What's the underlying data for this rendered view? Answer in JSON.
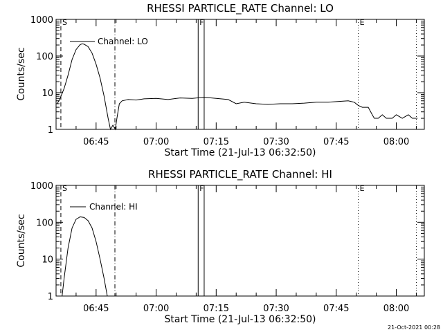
{
  "footer": {
    "timestamp": "21-Oct-2021 00:28"
  },
  "chart_data": [
    {
      "type": "line",
      "title": "RHESSI PARTICLE_RATE Channel: LO",
      "xlabel": "Start Time (21-Jul-13 06:32:50)",
      "ylabel": "Counts/sec",
      "yscale": "log",
      "xlim": [
        "06:35",
        "08:07"
      ],
      "ylim": [
        1,
        1000
      ],
      "x_ticks": [
        "06:45",
        "07:00",
        "07:15",
        "07:30",
        "07:45",
        "08:00"
      ],
      "y_ticks": [
        "1",
        "10",
        "100",
        "1000"
      ],
      "legend": {
        "placement": "top-left",
        "entries": [
          "Channel: LO"
        ]
      },
      "grid": false,
      "markers": [
        {
          "label": "S",
          "time": "06:36.2",
          "style": "dashed"
        },
        {
          "label": "",
          "time": "06:49.7",
          "style": "dashdot"
        },
        {
          "label": "F",
          "time": "07:10.5",
          "style": "solid"
        },
        {
          "label": "",
          "time": "07:12.0",
          "style": "solid"
        },
        {
          "label": "E",
          "time": "07:50.5",
          "style": "dotted"
        },
        {
          "label": "",
          "time": "08:05.0",
          "style": "dotted"
        }
      ],
      "series": [
        {
          "name": "Channel: LO",
          "points": [
            [
              "06:35.3",
              5
            ],
            [
              "06:36.0",
              7
            ],
            [
              "06:37.0",
              13
            ],
            [
              "06:38.0",
              30
            ],
            [
              "06:39.0",
              80
            ],
            [
              "06:40.0",
              150
            ],
            [
              "06:41.0",
              205
            ],
            [
              "06:41.5",
              215
            ],
            [
              "06:42.0",
              210
            ],
            [
              "06:43.0",
              180
            ],
            [
              "06:44.0",
              120
            ],
            [
              "06:45.0",
              60
            ],
            [
              "06:46.0",
              25
            ],
            [
              "06:47.0",
              8
            ],
            [
              "06:48.0",
              2
            ],
            [
              "06:48.6",
              1
            ],
            [
              "06:49.2",
              1.3
            ],
            [
              "06:49.8",
              1
            ],
            [
              "06:50.2",
              2
            ],
            [
              "06:50.8",
              5
            ],
            [
              "06:51.5",
              6
            ],
            [
              "06:53.0",
              6.5
            ],
            [
              "06:55.0",
              6.3
            ],
            [
              "06:57.0",
              6.8
            ],
            [
              "07:00.0",
              7
            ],
            [
              "07:03.0",
              6.5
            ],
            [
              "07:06.0",
              7.2
            ],
            [
              "07:09.0",
              7
            ],
            [
              "07:12.0",
              7.5
            ],
            [
              "07:15.0",
              7
            ],
            [
              "07:18.0",
              6.5
            ],
            [
              "07:20.0",
              5
            ],
            [
              "07:22.0",
              5.5
            ],
            [
              "07:25.0",
              5
            ],
            [
              "07:28.0",
              4.8
            ],
            [
              "07:31.0",
              5
            ],
            [
              "07:34.0",
              5
            ],
            [
              "07:37.0",
              5.2
            ],
            [
              "07:40.0",
              5.5
            ],
            [
              "07:43.0",
              5.5
            ],
            [
              "07:46.0",
              5.8
            ],
            [
              "07:48.0",
              6
            ],
            [
              "07:49.5",
              5.5
            ],
            [
              "07:50.5",
              4.5
            ],
            [
              "07:51.5",
              4
            ],
            [
              "07:53.0",
              4
            ],
            [
              "07:54.0",
              2.5
            ],
            [
              "07:54.5",
              2
            ],
            [
              "07:55.5",
              2
            ],
            [
              "07:56.5",
              2.5
            ],
            [
              "07:57.5",
              2
            ],
            [
              "07:59.0",
              2
            ],
            [
              "08:00.0",
              2.5
            ],
            [
              "08:01.5",
              2
            ],
            [
              "08:03.0",
              2.5
            ],
            [
              "08:04.0",
              2
            ],
            [
              "08:05.3",
              2
            ]
          ]
        }
      ]
    },
    {
      "type": "line",
      "title": "RHESSI PARTICLE_RATE Channel: HI",
      "xlabel": "Start Time (21-Jul-13 06:32:50)",
      "ylabel": "Counts/sec",
      "yscale": "log",
      "xlim": [
        "06:35",
        "08:07"
      ],
      "ylim": [
        1,
        1000
      ],
      "x_ticks": [
        "06:45",
        "07:00",
        "07:15",
        "07:30",
        "07:45",
        "08:00"
      ],
      "y_ticks": [
        "1",
        "10",
        "100",
        "1000"
      ],
      "legend": {
        "placement": "top-left",
        "entries": [
          "Channel: HI"
        ]
      },
      "grid": false,
      "markers": [
        {
          "label": "S",
          "time": "06:36.2",
          "style": "dashed"
        },
        {
          "label": "",
          "time": "06:49.7",
          "style": "dashdot"
        },
        {
          "label": "F",
          "time": "07:10.5",
          "style": "solid"
        },
        {
          "label": "",
          "time": "07:12.0",
          "style": "solid"
        },
        {
          "label": "E",
          "time": "07:50.5",
          "style": "dotted"
        },
        {
          "label": "",
          "time": "08:05.0",
          "style": "dotted"
        }
      ],
      "series": [
        {
          "name": "Channel: HI",
          "points": [
            [
              "06:36.5",
              1
            ],
            [
              "06:37.0",
              3
            ],
            [
              "06:38.0",
              20
            ],
            [
              "06:39.0",
              70
            ],
            [
              "06:40.0",
              120
            ],
            [
              "06:41.0",
              140
            ],
            [
              "06:42.0",
              135
            ],
            [
              "06:43.0",
              110
            ],
            [
              "06:44.0",
              70
            ],
            [
              "06:45.0",
              30
            ],
            [
              "06:46.0",
              10
            ],
            [
              "06:47.0",
              3
            ],
            [
              "06:47.8",
              1
            ]
          ]
        }
      ]
    }
  ]
}
